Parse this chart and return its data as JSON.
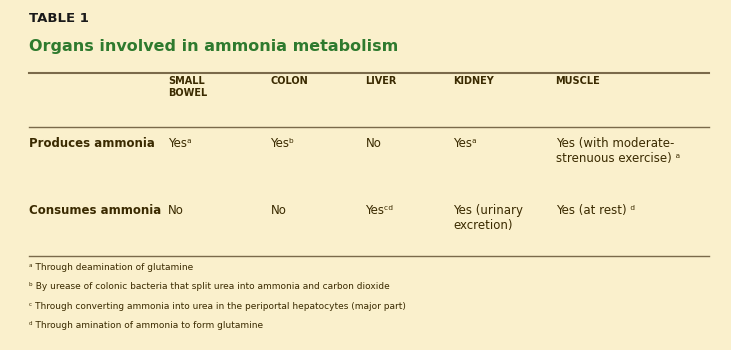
{
  "background_color": "#faf0cc",
  "border_bottom_color": "#b5892a",
  "table_label": "TABLE 1",
  "table_label_color": "#1a1a1a",
  "title": "Organs involved in ammonia metabolism",
  "title_color": "#2e7a2e",
  "col_headers": [
    "SMALL\nBOWEL",
    "COLON",
    "LIVER",
    "KIDNEY",
    "MUSCLE"
  ],
  "row_headers": [
    "Produces ammonia",
    "Consumes ammonia"
  ],
  "row_header_color": "#3a2a00",
  "col_header_color": "#3a2a00",
  "cell_data": [
    [
      "Yesᵃ",
      "Yesᵇ",
      "No",
      "Yesᵃ",
      "Yes (with moderate-\nstrenuous exercise) ᵃ"
    ],
    [
      "No",
      "No",
      "Yesᶜᵈ",
      "Yes (urinary\nexcretion)",
      "Yes (at rest) ᵈ"
    ]
  ],
  "cell_color": "#3a2a00",
  "footnotes": [
    "ᵃ Through deamination of glutamine",
    "ᵇ By urease of colonic bacteria that split urea into ammonia and carbon dioxide",
    "ᶜ Through converting ammonia into urea in the periportal hepatocytes (major part)",
    "ᵈ Through amination of ammonia to form glutamine"
  ],
  "footnote_color": "#3a2a00",
  "line_color": "#7a6a4a",
  "figsize": [
    7.31,
    3.5
  ],
  "dpi": 100
}
